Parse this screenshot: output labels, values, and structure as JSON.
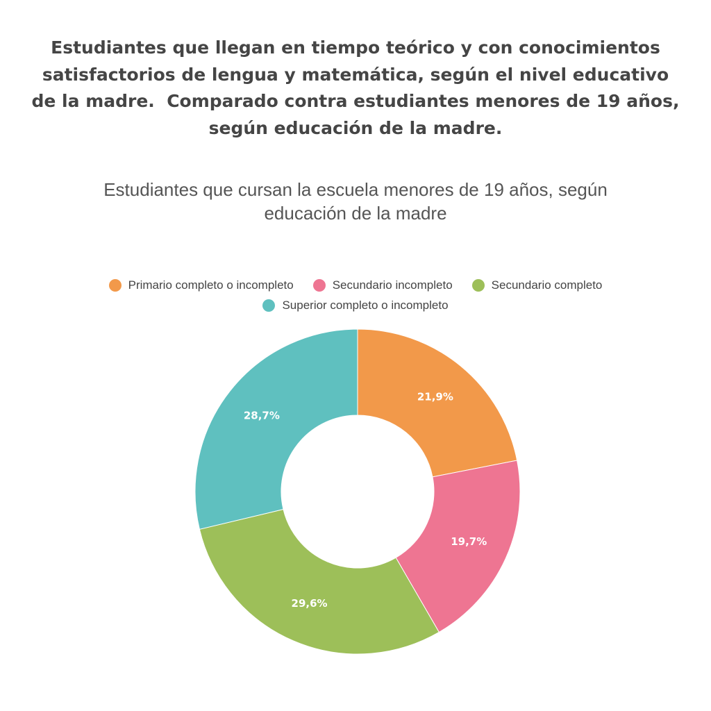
{
  "chart_data": {
    "type": "donut",
    "title": "Estudiantes que llegan en tiempo teórico y con conocimientos satisfactorios de lengua y matemática, según el nivel educativo de la madre.  Comparado contra estudiantes menores de 19 años, según educación de la madre.",
    "subtitle": "Estudiantes que cursan la escuela menores de 19 años, según educación de la madre",
    "categories": [
      "Primario completo o incompleto",
      "Secundario incompleto",
      "Secundario completo",
      "Superior completo o incompleto"
    ],
    "values": [
      21.9,
      19.7,
      29.6,
      28.7
    ],
    "value_labels": [
      "21,9%",
      "19,7%",
      "29,6%",
      "28,7%"
    ],
    "colors": [
      "#f2994a",
      "#ee7592",
      "#9dbf59",
      "#5fc0bf"
    ],
    "legend": "top"
  }
}
